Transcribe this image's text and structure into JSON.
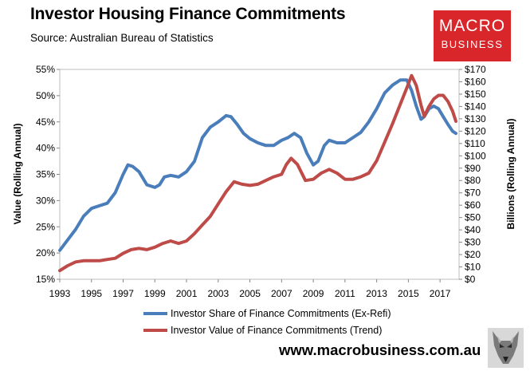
{
  "header": {
    "title": "Investor Housing Finance Commitments",
    "subtitle": "Source: Australian Bureau of Statistics"
  },
  "logo": {
    "line1": "MACRO",
    "line2": "BUSINESS"
  },
  "footer": {
    "url": "www.macrobusiness.com.au"
  },
  "colors": {
    "blue": "#4a7ebb",
    "red": "#be4b48",
    "logo_red": "#d9262b"
  },
  "chart_data": {
    "type": "line",
    "title": "Investor Housing Finance Commitments",
    "xlabel": "",
    "ylabel_left": "Value (Rolling Annual)",
    "ylabel_right": "Billions (Rolling Annual)",
    "xlim": [
      1993,
      2018.2
    ],
    "x_ticks": [
      "1993",
      "1995",
      "1997",
      "1999",
      "2001",
      "2003",
      "2005",
      "2007",
      "2009",
      "2011",
      "2013",
      "2015",
      "2017"
    ],
    "ylim_left": [
      15,
      55
    ],
    "y_ticks_left": [
      "15%",
      "20%",
      "25%",
      "30%",
      "35%",
      "40%",
      "45%",
      "50%",
      "55%"
    ],
    "ylim_right": [
      0,
      170
    ],
    "y_ticks_right": [
      "$0",
      "$10",
      "$20",
      "$30",
      "$40",
      "$50",
      "$60",
      "$70",
      "$80",
      "$90",
      "$100",
      "$110",
      "$120",
      "$130",
      "$140",
      "$150",
      "$160",
      "$170"
    ],
    "legend_position": "bottom",
    "grid": false,
    "series": [
      {
        "name": "Investor Share of Finance Commitments (Ex-Refi)",
        "axis": "left",
        "color": "#4a7ebb",
        "x": [
          1993.0,
          1993.5,
          1994.0,
          1994.5,
          1995.0,
          1995.5,
          1996.0,
          1996.5,
          1997.0,
          1997.3,
          1997.6,
          1998.0,
          1998.5,
          1999.0,
          1999.3,
          1999.6,
          2000.0,
          2000.5,
          2001.0,
          2001.5,
          2002.0,
          2002.5,
          2003.0,
          2003.5,
          2003.8,
          2004.2,
          2004.6,
          2005.0,
          2005.5,
          2006.0,
          2006.5,
          2007.0,
          2007.4,
          2007.8,
          2008.2,
          2008.6,
          2009.0,
          2009.3,
          2009.7,
          2010.0,
          2010.5,
          2011.0,
          2011.5,
          2012.0,
          2012.5,
          2013.0,
          2013.5,
          2014.0,
          2014.5,
          2014.9,
          2015.2,
          2015.5,
          2015.8,
          2016.0,
          2016.3,
          2016.6,
          2016.9,
          2017.2,
          2017.5,
          2017.8,
          2018.0
        ],
        "values": [
          20.5,
          22.5,
          24.5,
          27.0,
          28.5,
          29.0,
          29.5,
          31.5,
          35.0,
          36.8,
          36.5,
          35.5,
          33.0,
          32.5,
          33.0,
          34.5,
          34.8,
          34.5,
          35.5,
          37.5,
          42.0,
          44.0,
          45.0,
          46.2,
          46.0,
          44.5,
          42.8,
          41.8,
          41.0,
          40.5,
          40.5,
          41.5,
          42.0,
          42.8,
          42.0,
          39.0,
          36.8,
          37.5,
          40.5,
          41.5,
          41.0,
          41.0,
          42.0,
          43.0,
          45.0,
          47.5,
          50.5,
          52.0,
          53.0,
          53.0,
          51.0,
          48.0,
          45.5,
          46.0,
          47.5,
          48.0,
          47.5,
          46.0,
          44.5,
          43.2,
          42.8
        ]
      },
      {
        "name": "Investor Value of Finance Commitments (Trend)",
        "axis": "right",
        "color": "#be4b48",
        "x": [
          1993.0,
          1993.5,
          1994.0,
          1994.5,
          1995.0,
          1995.5,
          1996.0,
          1996.5,
          1997.0,
          1997.5,
          1998.0,
          1998.5,
          1999.0,
          1999.5,
          2000.0,
          2000.5,
          2001.0,
          2001.5,
          2002.0,
          2002.5,
          2003.0,
          2003.5,
          2004.0,
          2004.5,
          2005.0,
          2005.5,
          2006.0,
          2006.5,
          2007.0,
          2007.3,
          2007.6,
          2008.0,
          2008.5,
          2009.0,
          2009.5,
          2010.0,
          2010.5,
          2011.0,
          2011.5,
          2012.0,
          2012.5,
          2013.0,
          2013.5,
          2014.0,
          2014.5,
          2014.9,
          2015.2,
          2015.5,
          2015.8,
          2016.0,
          2016.3,
          2016.6,
          2016.9,
          2017.2,
          2017.5,
          2017.8,
          2018.0
        ],
        "values": [
          7,
          11,
          14,
          15,
          15,
          15,
          16,
          17,
          21,
          24,
          25,
          24,
          26,
          29,
          31,
          29,
          31,
          37,
          44,
          51,
          61,
          71,
          79,
          77,
          76,
          77,
          80,
          83,
          85,
          93,
          98,
          93,
          80,
          81,
          86,
          89,
          86,
          81,
          81,
          83,
          86,
          96,
          111,
          126,
          142,
          155,
          165,
          157,
          141,
          132,
          140,
          146,
          149,
          149,
          144,
          136,
          128
        ]
      }
    ]
  }
}
